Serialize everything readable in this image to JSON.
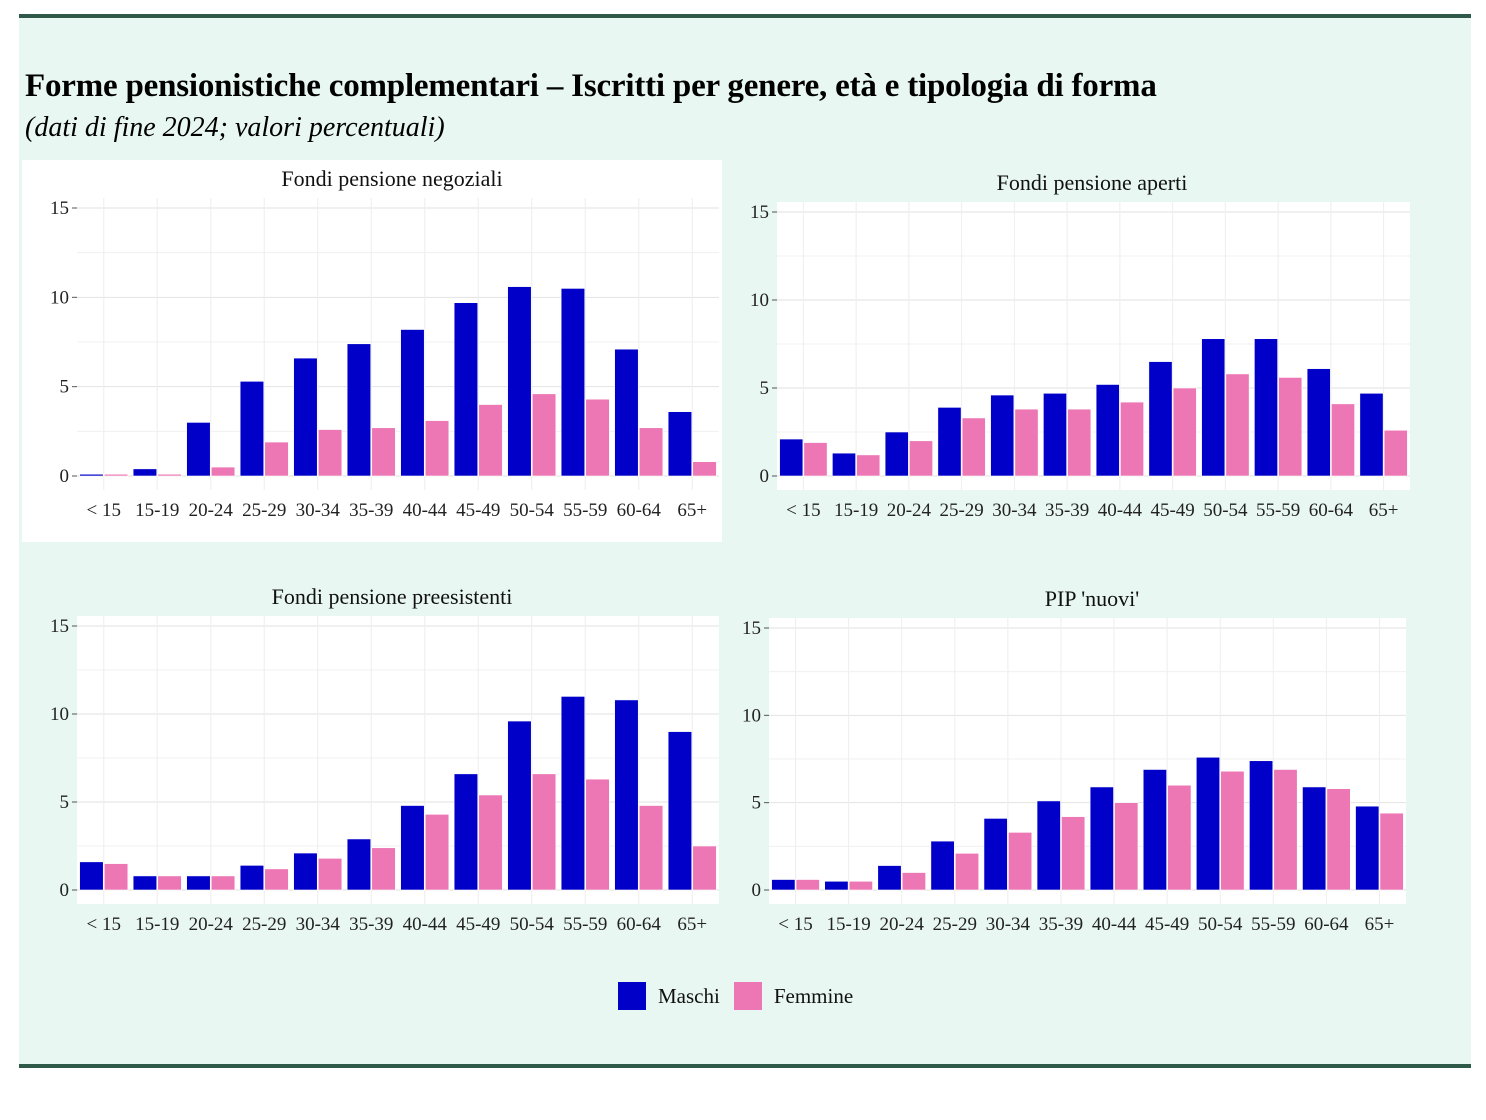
{
  "title": "Forme pensionistiche complementari – Iscritti per genere, età e tipologia di forma",
  "subtitle": "(dati di fine 2024; valori percentuali)",
  "colors": {
    "maschi": "#0000c8",
    "femmine": "#ec77b4",
    "frame": "#2f5a4a",
    "background": "#e8f7f2"
  },
  "legend": {
    "maschi": "Maschi",
    "femmine": "Femmine"
  },
  "chart_data": [
    {
      "type": "bar",
      "title": "Fondi pensione negoziali",
      "categories": [
        "< 15",
        "15-19",
        "20-24",
        "25-29",
        "30-34",
        "35-39",
        "40-44",
        "45-49",
        "50-54",
        "55-59",
        "60-64",
        "65+"
      ],
      "yticks": [
        0,
        5,
        10,
        15
      ],
      "ylim": [
        0,
        15
      ],
      "series": [
        {
          "name": "Maschi",
          "values": [
            0.1,
            0.4,
            3.0,
            5.3,
            6.6,
            7.4,
            8.2,
            9.7,
            10.6,
            10.5,
            7.1,
            3.6
          ]
        },
        {
          "name": "Femmine",
          "values": [
            0.1,
            0.1,
            0.5,
            1.9,
            2.6,
            2.7,
            3.1,
            4.0,
            4.6,
            4.3,
            2.7,
            0.8
          ]
        }
      ]
    },
    {
      "type": "bar",
      "title": "Fondi pensione aperti",
      "categories": [
        "< 15",
        "15-19",
        "20-24",
        "25-29",
        "30-34",
        "35-39",
        "40-44",
        "45-49",
        "50-54",
        "55-59",
        "60-64",
        "65+"
      ],
      "yticks": [
        0,
        5,
        10,
        15
      ],
      "ylim": [
        0,
        15
      ],
      "series": [
        {
          "name": "Maschi",
          "values": [
            2.1,
            1.3,
            2.5,
            3.9,
            4.6,
            4.7,
            5.2,
            6.5,
            7.8,
            7.8,
            6.1,
            4.7
          ]
        },
        {
          "name": "Femmine",
          "values": [
            1.9,
            1.2,
            2.0,
            3.3,
            3.8,
            3.8,
            4.2,
            5.0,
            5.8,
            5.6,
            4.1,
            2.6
          ]
        }
      ]
    },
    {
      "type": "bar",
      "title": "Fondi pensione preesistenti",
      "categories": [
        "< 15",
        "15-19",
        "20-24",
        "25-29",
        "30-34",
        "35-39",
        "40-44",
        "45-49",
        "50-54",
        "55-59",
        "60-64",
        "65+"
      ],
      "yticks": [
        0,
        5,
        10,
        15
      ],
      "ylim": [
        0,
        15
      ],
      "series": [
        {
          "name": "Maschi",
          "values": [
            1.6,
            0.8,
            0.8,
            1.4,
            2.1,
            2.9,
            4.8,
            6.6,
            9.6,
            11.0,
            10.8,
            9.0
          ]
        },
        {
          "name": "Femmine",
          "values": [
            1.5,
            0.8,
            0.8,
            1.2,
            1.8,
            2.4,
            4.3,
            5.4,
            6.6,
            6.3,
            4.8,
            2.5
          ]
        }
      ]
    },
    {
      "type": "bar",
      "title": "PIP 'nuovi'",
      "categories": [
        "< 15",
        "15-19",
        "20-24",
        "25-29",
        "30-34",
        "35-39",
        "40-44",
        "45-49",
        "50-54",
        "55-59",
        "60-64",
        "65+"
      ],
      "yticks": [
        0,
        5,
        10,
        15
      ],
      "ylim": [
        0,
        15
      ],
      "series": [
        {
          "name": "Maschi",
          "values": [
            0.6,
            0.5,
            1.4,
            2.8,
            4.1,
            5.1,
            5.9,
            6.9,
            7.6,
            7.4,
            5.9,
            4.8
          ]
        },
        {
          "name": "Femmine",
          "values": [
            0.6,
            0.5,
            1.0,
            2.1,
            3.3,
            4.2,
            5.0,
            6.0,
            6.8,
            6.9,
            5.8,
            4.4
          ]
        }
      ]
    }
  ]
}
